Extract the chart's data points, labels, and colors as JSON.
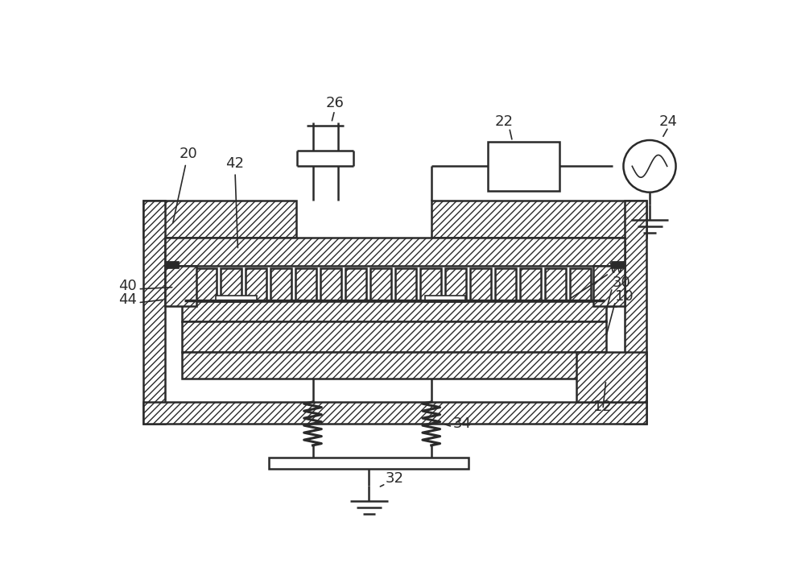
{
  "bg_color": "#ffffff",
  "lc": "#2a2a2a",
  "lw": 1.8,
  "lw_thick": 2.2,
  "fig_w": 10.0,
  "fig_h": 7.25,
  "dpi": 100,
  "label_fs": 13
}
